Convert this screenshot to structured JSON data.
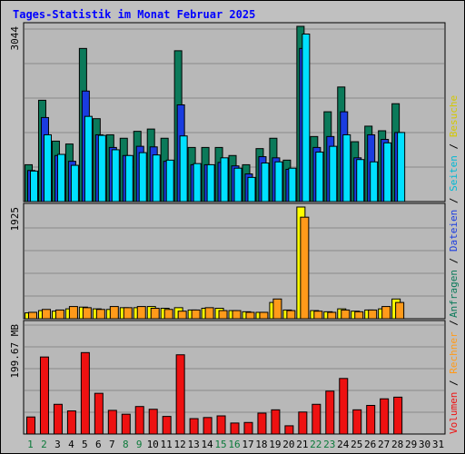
{
  "colors": {
    "background": "#c0c0c0",
    "panel": "#b8b8b8",
    "grid": "#8a8a8a",
    "title": "#0000ff",
    "anfragen": "#0b7a5a",
    "dateien": "#1a3ce0",
    "seiten": "#00e0ff",
    "besuche": "#ffff00",
    "rechner": "#ff9a1a",
    "volumen": "#ee1111",
    "weekday_tick": "#000000",
    "weekend_tick": "#0b7a3a"
  },
  "chart_data": {
    "type": "bar",
    "title": "Tages-Statistik im Monat Februar 2025",
    "categories": [
      "1",
      "2",
      "3",
      "4",
      "5",
      "6",
      "7",
      "8",
      "9",
      "10",
      "11",
      "12",
      "13",
      "14",
      "15",
      "16",
      "17",
      "18",
      "19",
      "20",
      "21",
      "22",
      "23",
      "24",
      "25",
      "26",
      "27",
      "28",
      "29",
      "30",
      "31"
    ],
    "weekend_days": [
      1,
      2,
      8,
      9,
      15,
      16,
      22,
      23
    ],
    "panels": [
      {
        "ymax_label": "3044",
        "ymax": 3044,
        "series": [
          {
            "name": "Anfragen",
            "values": [
              640,
              1760,
              1050,
              1000,
              2660,
              1440,
              1160,
              1100,
              1220,
              1260,
              1100,
              2620,
              940,
              940,
              940,
              800,
              640,
              920,
              1100,
              720,
              3044,
              1130,
              1560,
              1990,
              1040,
              1310,
              1230,
              1700,
              0,
              0,
              0
            ]
          },
          {
            "name": "Dateien",
            "values": [
              540,
              1460,
              800,
              700,
              1920,
              1160,
              940,
              800,
              960,
              950,
              700,
              1680,
              640,
              640,
              680,
              620,
              480,
              780,
              760,
              560,
              2660,
              940,
              1130,
              1560,
              760,
              1160,
              1080,
              1200,
              0,
              0,
              0
            ]
          },
          {
            "name": "Seiten",
            "values": [
              530,
              1160,
              820,
              630,
              1480,
              1150,
              900,
              800,
              850,
              810,
              720,
              1140,
              660,
              640,
              760,
              580,
              420,
              670,
              690,
              580,
              2910,
              860,
              960,
              1160,
              730,
              690,
              1020,
              1200,
              0,
              0,
              0
            ]
          }
        ]
      },
      {
        "ymax_label": "1925",
        "ymax": 1925,
        "series": [
          {
            "name": "Besuche",
            "values": [
              100,
              140,
              130,
              170,
              200,
              170,
              160,
              190,
              190,
              210,
              180,
              190,
              150,
              180,
              180,
              140,
              120,
              110,
              280,
              150,
              1925,
              140,
              120,
              170,
              130,
              150,
              170,
              340,
              0,
              0,
              0
            ]
          },
          {
            "name": "Rechner",
            "values": [
              110,
              160,
              150,
              210,
              190,
              160,
              210,
              190,
              210,
              180,
              160,
              130,
              150,
              190,
              140,
              140,
              110,
              110,
              340,
              140,
              1750,
              130,
              110,
              150,
              120,
              150,
              210,
              280,
              0,
              0,
              0
            ]
          }
        ]
      },
      {
        "ymax_label": "199.67 MB",
        "ymax": 199.67,
        "series": [
          {
            "name": "Volumen",
            "values": [
              31,
              140,
              54,
              42,
              148,
              74,
              43,
              36,
              50,
              45,
              32,
              144,
              28,
              30,
              33,
              20,
              21,
              38,
              44,
              15,
              40,
              54,
              78,
              101,
              44,
              52,
              64,
              67,
              0,
              0,
              0
            ]
          }
        ]
      }
    ]
  },
  "right_labels": {
    "top": [
      {
        "text": "Anfragen",
        "color": "#0b7a5a"
      },
      {
        "text": " / ",
        "color": "#000000"
      },
      {
        "text": "Dateien",
        "color": "#1a3ce0"
      },
      {
        "text": " / ",
        "color": "#000000"
      },
      {
        "text": "Seiten",
        "color": "#00b8d4"
      },
      {
        "text": " / ",
        "color": "#000000"
      },
      {
        "text": "Besuche",
        "color": "#d4c800"
      }
    ],
    "bottom": [
      {
        "text": "Volumen",
        "color": "#ee1111"
      },
      {
        "text": " / ",
        "color": "#000000"
      },
      {
        "text": "Rechner",
        "color": "#ff9a1a"
      },
      {
        "text": " / ",
        "color": "#000000"
      }
    ]
  }
}
